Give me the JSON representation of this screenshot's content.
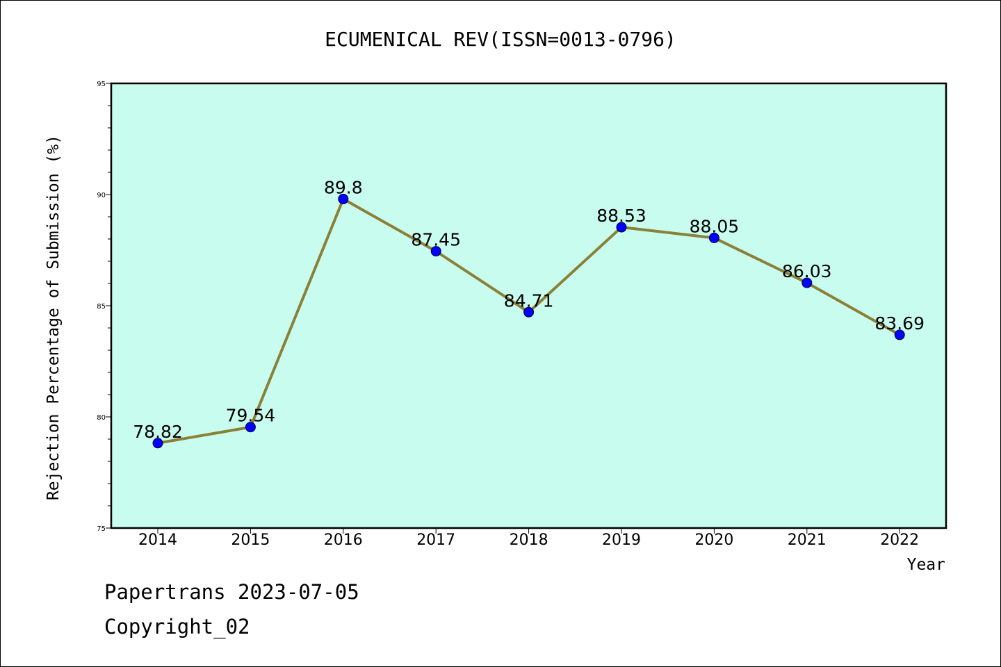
{
  "chart_data": {
    "type": "line",
    "title": "ECUMENICAL REV(ISSN=0013-0796)",
    "xlabel": "Year",
    "ylabel": "Rejection Percentage of Submission (%)",
    "categories": [
      "2014",
      "2015",
      "2016",
      "2017",
      "2018",
      "2019",
      "2020",
      "2021",
      "2022"
    ],
    "values": [
      78.82,
      79.54,
      89.8,
      87.45,
      84.71,
      88.53,
      88.05,
      86.03,
      83.69
    ],
    "data_labels": [
      "78.82",
      "79.54",
      "89.8",
      "87.45",
      "84.71",
      "88.53",
      "88.05",
      "86.03",
      "83.69"
    ],
    "ylim": [
      75,
      95
    ],
    "yticks": [
      "75",
      "80",
      "85",
      "90",
      "95"
    ],
    "colors": {
      "plot_background": "#c8fcee",
      "line": "#8b8038",
      "marker": "#0000ff"
    },
    "grid": false
  },
  "footer": {
    "line1": "Papertrans 2023-07-05",
    "line2": "Copyright_02"
  }
}
